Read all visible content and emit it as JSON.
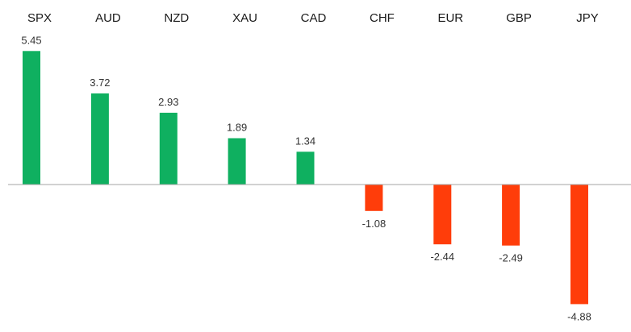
{
  "chart_data": {
    "type": "bar",
    "title": "",
    "xlabel": "",
    "ylabel": "",
    "categories": [
      "SPX",
      "AUD",
      "NZD",
      "XAU",
      "CAD",
      "CHF",
      "EUR",
      "GBP",
      "JPY"
    ],
    "values": [
      5.45,
      3.72,
      2.93,
      1.89,
      1.34,
      -1.08,
      -2.44,
      -2.49,
      -4.88
    ],
    "value_labels": [
      "5.45",
      "3.72",
      "2.93",
      "1.89",
      "1.34",
      "-1.08",
      "-2.44",
      "-2.49",
      "-4.88"
    ],
    "ylim": [
      -4.88,
      5.45
    ],
    "grid": false,
    "legend": "none",
    "colors": {
      "positive": "#0fb060",
      "negative": "#ff3d0a",
      "baseline": "#a6a6a6"
    }
  }
}
